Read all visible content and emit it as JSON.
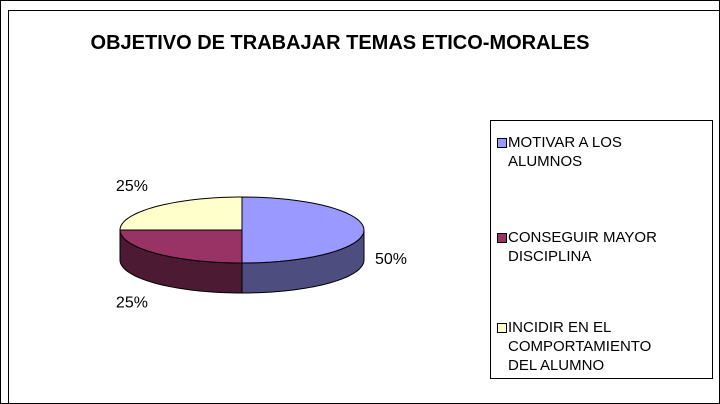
{
  "chart_data": {
    "type": "pie3d",
    "title": "OBJETIVO DE TRABAJAR TEMAS ETICO-MORALES",
    "categories": [
      "MOTIVAR A LOS ALUMNOS",
      "CONSEGUIR MAYOR DISCIPLINA",
      "INCIDIR EN EL COMPORTAMIENTO DEL ALUMNO"
    ],
    "values": [
      50,
      25,
      25
    ],
    "value_labels": [
      "50%",
      "25%",
      "25%"
    ],
    "colors": [
      "#9999ff",
      "#993366",
      "#ffffcc"
    ],
    "legend": "right"
  }
}
